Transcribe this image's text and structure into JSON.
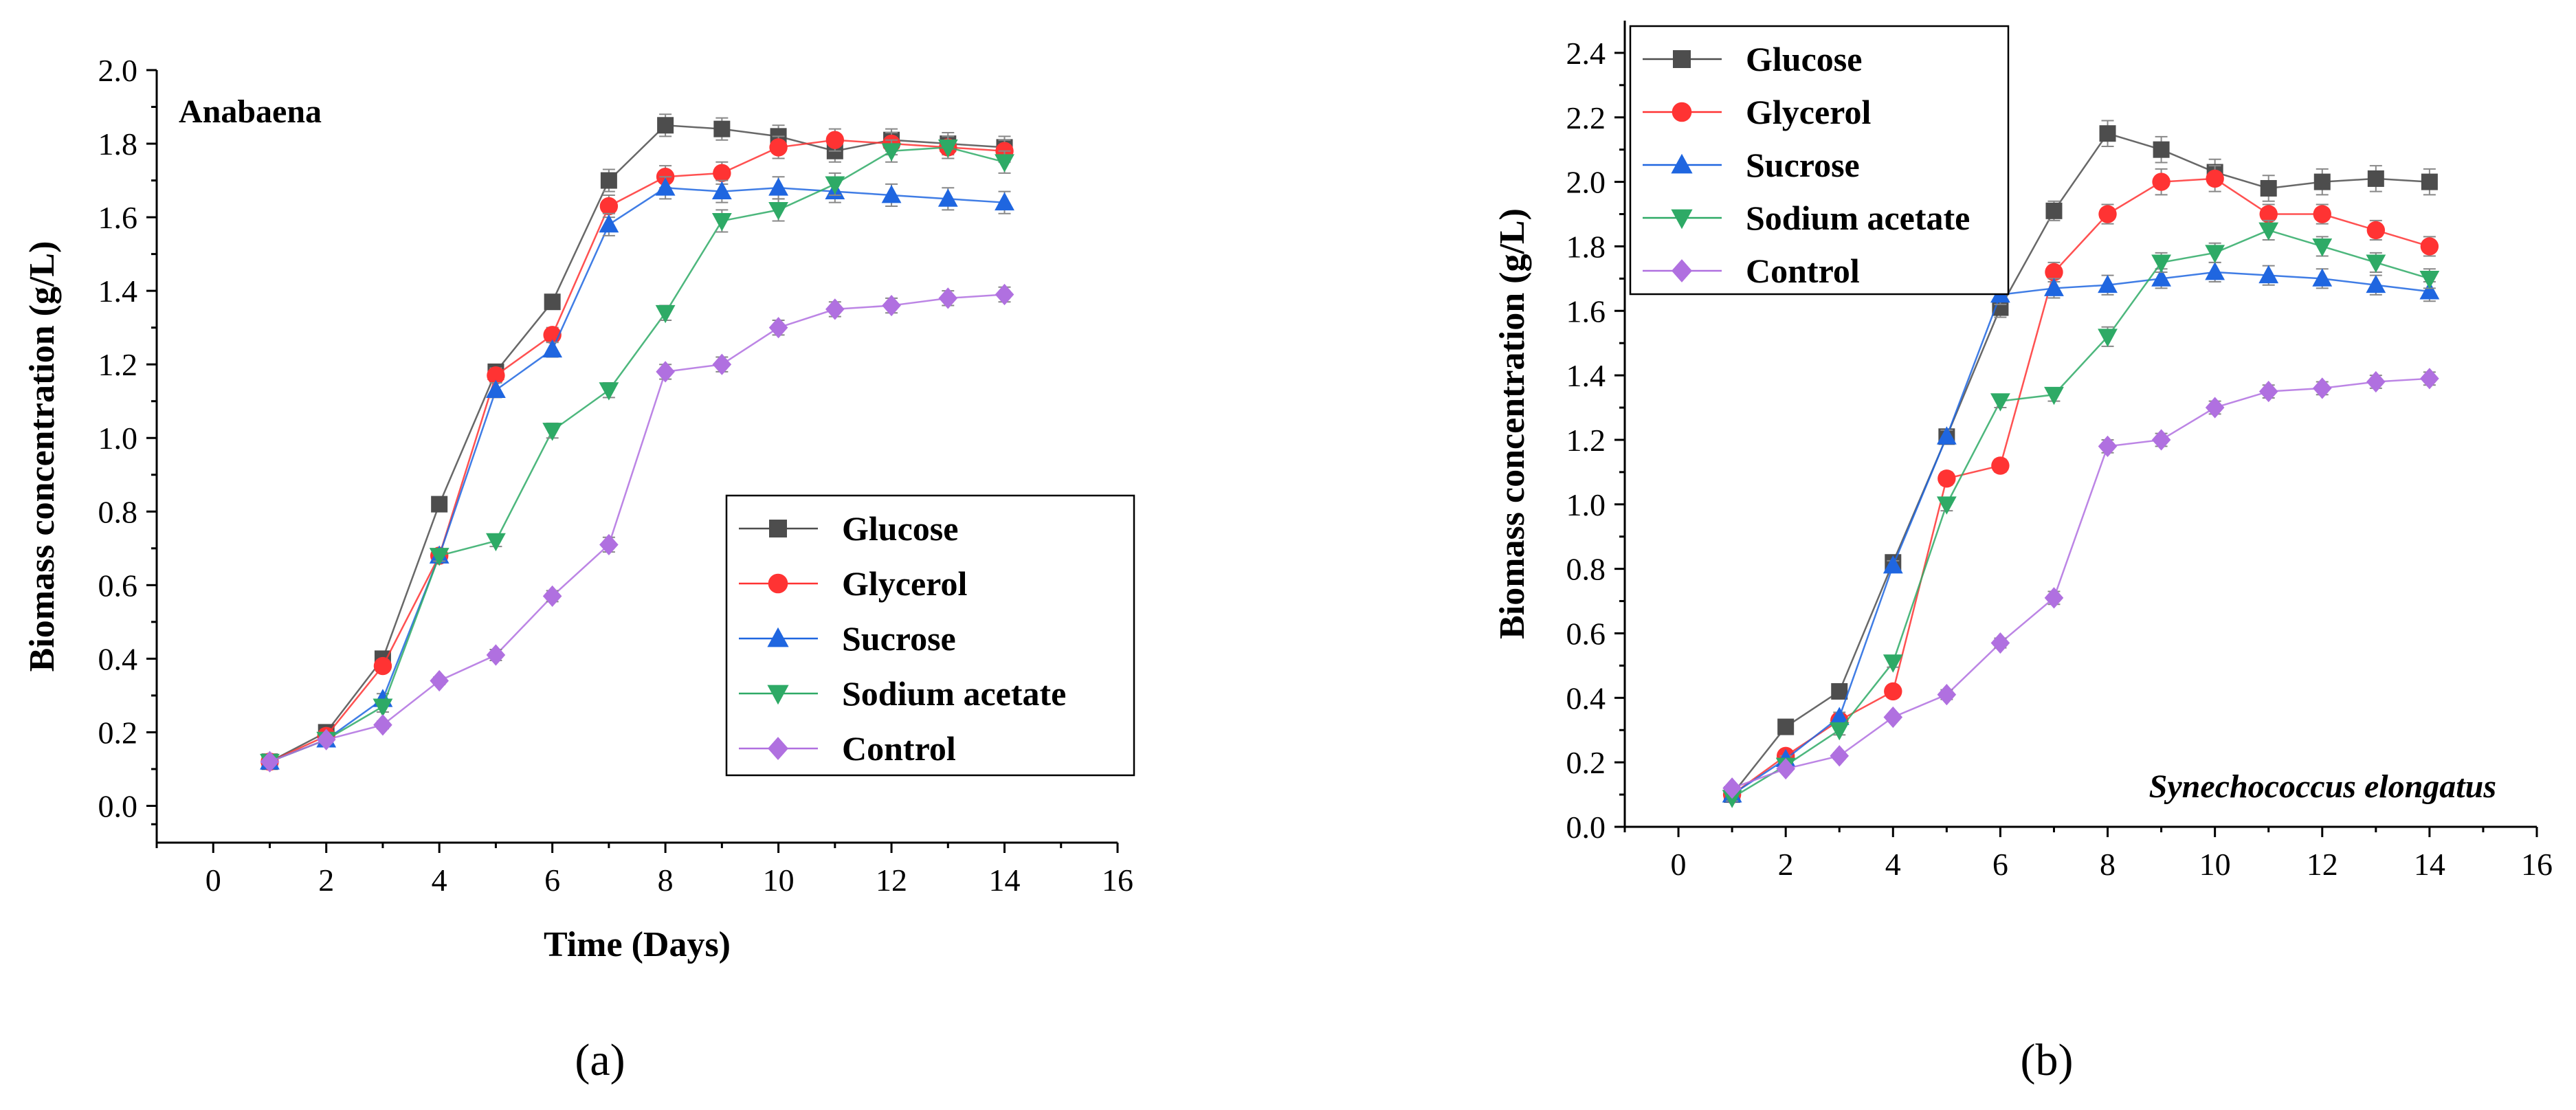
{
  "chart_data": [
    {
      "type": "line",
      "panel_label": "(a)",
      "title": "",
      "annotation": "Anabaena",
      "xlabel": "Time (Days)",
      "ylabel": "Biomass concentration (g/L)",
      "xlim": [
        -1,
        16
      ],
      "ylim": [
        -0.1,
        2.0
      ],
      "xticks": [
        0,
        2,
        4,
        6,
        8,
        10,
        12,
        14,
        16
      ],
      "yticks": [
        0.0,
        0.2,
        0.4,
        0.6,
        0.8,
        1.0,
        1.2,
        1.4,
        1.6,
        1.8,
        2.0
      ],
      "ytick_labels": [
        "0.0",
        "0.2",
        "0.4",
        "0.6",
        "0.8",
        "1.0",
        "1.2",
        "1.4",
        "1.6",
        "1.8",
        "2.0"
      ],
      "legend_position": "bottom-right",
      "x": [
        1,
        2,
        3,
        4,
        5,
        6,
        7,
        8,
        9,
        10,
        11,
        12,
        13,
        14
      ],
      "series": [
        {
          "name": "Glucose",
          "color": "#4d4d4d",
          "marker": "square",
          "values": [
            0.12,
            0.2,
            0.4,
            0.82,
            1.18,
            1.37,
            1.7,
            1.85,
            1.84,
            1.82,
            1.78,
            1.81,
            1.8,
            1.79
          ],
          "errors": [
            0.01,
            0.01,
            0.015,
            0.015,
            0.02,
            0.02,
            0.03,
            0.03,
            0.03,
            0.03,
            0.03,
            0.03,
            0.03,
            0.03
          ]
        },
        {
          "name": "Glycerol",
          "color": "#ff3333",
          "marker": "circle",
          "values": [
            0.12,
            0.19,
            0.38,
            0.68,
            1.17,
            1.28,
            1.63,
            1.71,
            1.72,
            1.79,
            1.81,
            1.8,
            1.79,
            1.78
          ],
          "errors": [
            0.01,
            0.01,
            0.015,
            0.015,
            0.02,
            0.02,
            0.03,
            0.03,
            0.03,
            0.03,
            0.03,
            0.03,
            0.03,
            0.03
          ]
        },
        {
          "name": "Sucrose",
          "color": "#1f66e0",
          "marker": "triangle-up",
          "values": [
            0.12,
            0.18,
            0.29,
            0.68,
            1.13,
            1.24,
            1.58,
            1.68,
            1.67,
            1.68,
            1.67,
            1.66,
            1.65,
            1.64
          ],
          "errors": [
            0.01,
            0.01,
            0.015,
            0.015,
            0.02,
            0.02,
            0.03,
            0.03,
            0.03,
            0.03,
            0.03,
            0.03,
            0.03,
            0.03
          ]
        },
        {
          "name": "Sodium acetate",
          "color": "#2eaa66",
          "marker": "triangle-down",
          "values": [
            0.12,
            0.18,
            0.27,
            0.68,
            0.72,
            1.02,
            1.13,
            1.34,
            1.59,
            1.62,
            1.69,
            1.78,
            1.79,
            1.75
          ],
          "errors": [
            0.01,
            0.01,
            0.015,
            0.015,
            0.015,
            0.02,
            0.02,
            0.02,
            0.03,
            0.03,
            0.03,
            0.03,
            0.03,
            0.03
          ]
        },
        {
          "name": "Control",
          "color": "#b070e0",
          "marker": "diamond",
          "values": [
            0.12,
            0.18,
            0.22,
            0.34,
            0.41,
            0.57,
            0.71,
            1.18,
            1.2,
            1.3,
            1.35,
            1.36,
            1.38,
            1.39
          ],
          "errors": [
            0.01,
            0.01,
            0.01,
            0.01,
            0.015,
            0.015,
            0.02,
            0.02,
            0.02,
            0.02,
            0.02,
            0.02,
            0.02,
            0.02
          ]
        }
      ]
    },
    {
      "type": "line",
      "panel_label": "(b)",
      "title": "",
      "annotation": "Synechococcus elongatus",
      "xlabel": "",
      "ylabel": "Biomass concentration (g/L)",
      "xlim": [
        -1,
        16
      ],
      "ylim": [
        0.0,
        2.5
      ],
      "xticks": [
        0,
        2,
        4,
        6,
        8,
        10,
        12,
        14,
        16
      ],
      "yticks": [
        0.0,
        0.2,
        0.4,
        0.6,
        0.8,
        1.0,
        1.2,
        1.4,
        1.6,
        1.8,
        2.0,
        2.2,
        2.4
      ],
      "ytick_labels": [
        "0.0",
        "0.2",
        "0.4",
        "0.6",
        "0.8",
        "1.0",
        "1.2",
        "1.4",
        "1.6",
        "1.8",
        "2.0",
        "2.2",
        "2.4"
      ],
      "legend_position": "top-left",
      "x": [
        1,
        2,
        3,
        4,
        5,
        6,
        7,
        8,
        9,
        10,
        11,
        12,
        13,
        14
      ],
      "series": [
        {
          "name": "Glucose",
          "color": "#4d4d4d",
          "marker": "square",
          "values": [
            0.1,
            0.31,
            0.42,
            0.82,
            1.21,
            1.61,
            1.91,
            2.15,
            2.1,
            2.03,
            1.98,
            2.0,
            2.01,
            2.0
          ],
          "errors": [
            0.01,
            0.01,
            0.015,
            0.015,
            0.02,
            0.03,
            0.03,
            0.04,
            0.04,
            0.04,
            0.04,
            0.04,
            0.04,
            0.04
          ]
        },
        {
          "name": "Glycerol",
          "color": "#ff3333",
          "marker": "circle",
          "values": [
            0.1,
            0.22,
            0.33,
            0.42,
            1.08,
            1.12,
            1.72,
            1.9,
            2.0,
            2.01,
            1.9,
            1.9,
            1.85,
            1.8
          ],
          "errors": [
            0.01,
            0.01,
            0.015,
            0.015,
            0.02,
            0.02,
            0.03,
            0.03,
            0.04,
            0.04,
            0.03,
            0.03,
            0.03,
            0.03
          ]
        },
        {
          "name": "Sucrose",
          "color": "#1f66e0",
          "marker": "triangle-up",
          "values": [
            0.1,
            0.21,
            0.34,
            0.81,
            1.21,
            1.65,
            1.67,
            1.68,
            1.7,
            1.72,
            1.71,
            1.7,
            1.68,
            1.66
          ],
          "errors": [
            0.01,
            0.01,
            0.015,
            0.015,
            0.02,
            0.03,
            0.03,
            0.03,
            0.03,
            0.03,
            0.03,
            0.03,
            0.03,
            0.03
          ]
        },
        {
          "name": "Sodium acetate",
          "color": "#2eaa66",
          "marker": "triangle-down",
          "values": [
            0.09,
            0.19,
            0.3,
            0.51,
            1.0,
            1.32,
            1.34,
            1.52,
            1.75,
            1.78,
            1.85,
            1.8,
            1.75,
            1.7
          ],
          "errors": [
            0.01,
            0.01,
            0.015,
            0.015,
            0.02,
            0.02,
            0.02,
            0.03,
            0.03,
            0.03,
            0.03,
            0.03,
            0.03,
            0.03
          ]
        },
        {
          "name": "Control",
          "color": "#b070e0",
          "marker": "diamond",
          "values": [
            0.12,
            0.18,
            0.22,
            0.34,
            0.41,
            0.57,
            0.71,
            1.18,
            1.2,
            1.3,
            1.35,
            1.36,
            1.38,
            1.39
          ],
          "errors": [
            0.01,
            0.01,
            0.01,
            0.01,
            0.015,
            0.015,
            0.02,
            0.02,
            0.02,
            0.02,
            0.02,
            0.02,
            0.02,
            0.02
          ]
        }
      ]
    }
  ]
}
